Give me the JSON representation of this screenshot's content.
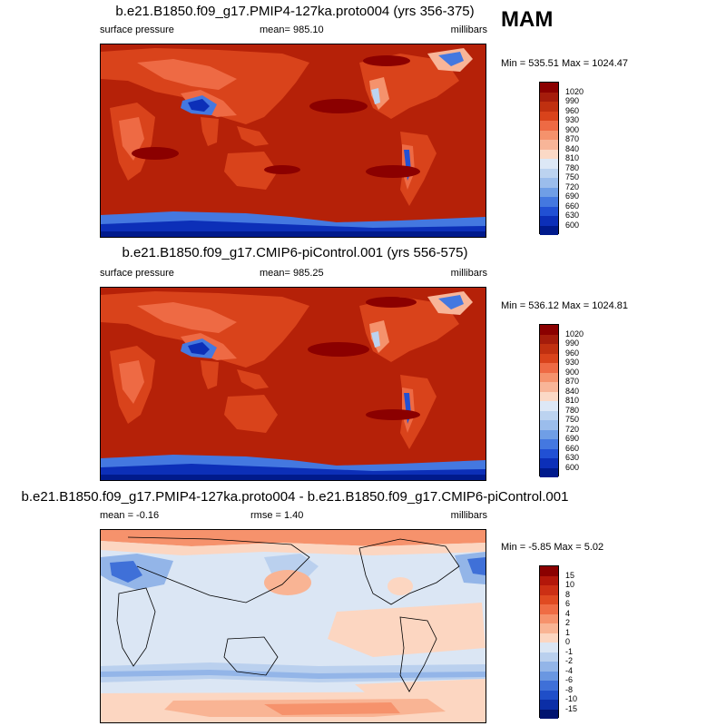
{
  "season": "MAM",
  "panels": [
    {
      "title": "b.e21.B1850.f09_g17.PMIP4-127ka.proto004 (yrs 356-375)",
      "left": "surface pressure",
      "center": "mean= 985.10",
      "right": "millibars",
      "minmax": "Min = 535.51 Max = 1024.47",
      "colorbar": {
        "labels": [
          "1020",
          "990",
          "960",
          "930",
          "900",
          "870",
          "840",
          "810",
          "780",
          "750",
          "720",
          "690",
          "660",
          "630",
          "600"
        ],
        "colors": [
          "#8b0000",
          "#a51c0b",
          "#c03010",
          "#d9431b",
          "#ee6a44",
          "#f5926c",
          "#f8b598",
          "#fbd9c6",
          "#dde8f6",
          "#bcd3f0",
          "#9bbdec",
          "#6f9ee6",
          "#4478e0",
          "#2150d4",
          "#0c2fb8",
          "#001a8c"
        ]
      }
    },
    {
      "title": "b.e21.B1850.f09_g17.CMIP6-piControl.001 (yrs 556-575)",
      "left": "surface pressure",
      "center": "mean= 985.25",
      "right": "millibars",
      "minmax": "Min = 536.12 Max = 1024.81",
      "colorbar": {
        "labels": [
          "1020",
          "990",
          "960",
          "930",
          "900",
          "870",
          "840",
          "810",
          "780",
          "750",
          "720",
          "690",
          "660",
          "630",
          "600"
        ],
        "colors": [
          "#8b0000",
          "#a51c0b",
          "#c03010",
          "#d9431b",
          "#ee6a44",
          "#f5926c",
          "#f8b598",
          "#fbd9c6",
          "#dde8f6",
          "#bcd3f0",
          "#9bbdec",
          "#6f9ee6",
          "#4478e0",
          "#2150d4",
          "#0c2fb8",
          "#001a8c"
        ]
      }
    },
    {
      "title": "b.e21.B1850.f09_g17.PMIP4-127ka.proto004 - b.e21.B1850.f09_g17.CMIP6-piControl.001",
      "left": "mean =  -0.16",
      "center": "rmse =   1.40",
      "right": "millibars",
      "minmax": "Min =  -5.85 Max =   5.02",
      "colorbar": {
        "labels": [
          "15",
          "10",
          "8",
          "6",
          "4",
          "2",
          "1",
          "0",
          "-1",
          "-2",
          "-4",
          "-6",
          "-8",
          "-10",
          "-15"
        ],
        "colors": [
          "#8b0000",
          "#b3170a",
          "#cc2f14",
          "#e04a21",
          "#ef6c44",
          "#f6926c",
          "#f9b494",
          "#fcd6c1",
          "#dbe6f4",
          "#bad0ee",
          "#93b5e8",
          "#6a97e1",
          "#3f70d8",
          "#1f4ec8",
          "#0b2ea6",
          "#001470"
        ]
      }
    }
  ]
}
